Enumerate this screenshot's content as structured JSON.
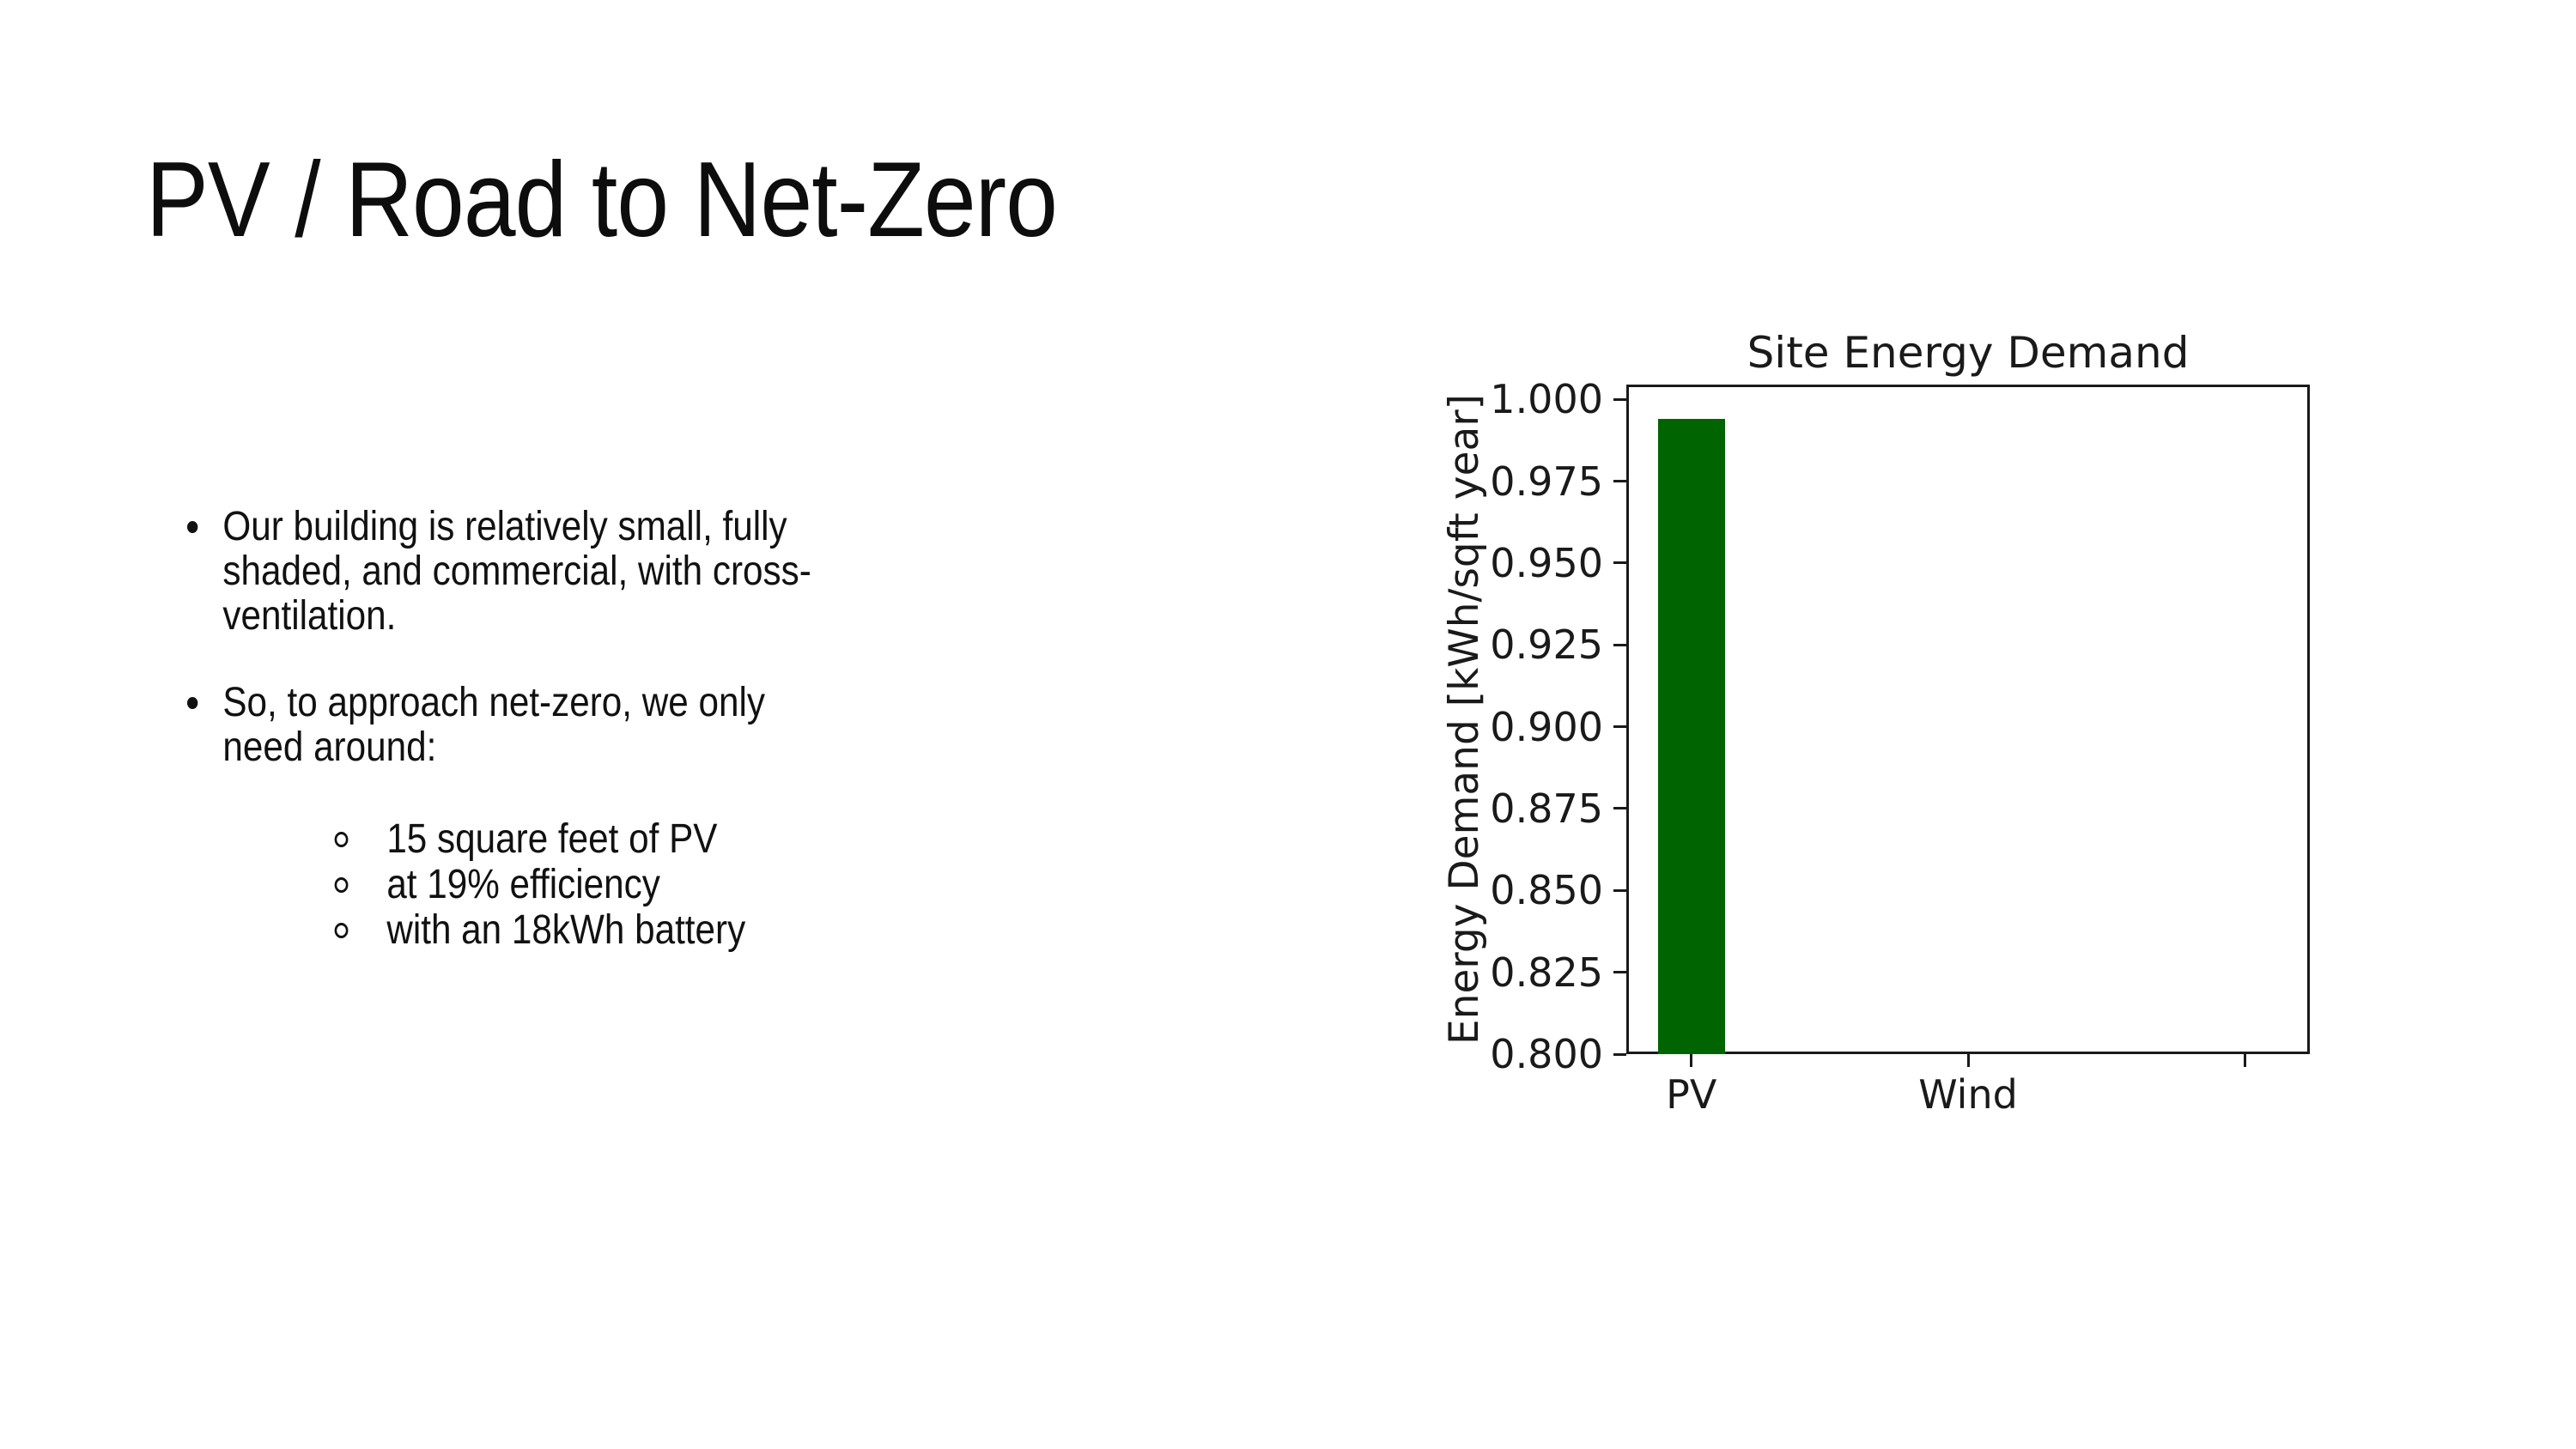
{
  "slide": {
    "title": "PV / Road to Net-Zero",
    "bullets": [
      {
        "level": 1,
        "lines": [
          "Our building is relatively small, fully",
          "shaded, and commercial, with cross-",
          "ventilation."
        ]
      },
      {
        "level": 1,
        "lines": [
          "So, to approach net-zero, we only",
          "need around:"
        ]
      },
      {
        "level": 2,
        "lines": [
          "15 square feet of PV"
        ]
      },
      {
        "level": 2,
        "lines": [
          "at 19% efficiency"
        ]
      },
      {
        "level": 2,
        "lines": [
          "with an 18kWh battery"
        ]
      }
    ]
  },
  "chart_data": {
    "type": "bar",
    "title": "Site Energy Demand",
    "xlabel": "",
    "ylabel": "Energy Demand [kWh/sqft year]",
    "categories": [
      "PV",
      "Wind",
      ""
    ],
    "values": [
      0.994,
      0,
      0
    ],
    "bar_color": "#006400",
    "ylim": [
      0.8,
      1.0045
    ],
    "xlim": [
      -0.235,
      2.235
    ],
    "yticks": [
      1.0,
      0.975,
      0.95,
      0.925,
      0.9,
      0.875,
      0.85,
      0.825,
      0.8
    ],
    "ytick_labels": [
      "1.000",
      "0.975",
      "0.950",
      "0.925",
      "0.900",
      "0.875",
      "0.850",
      "0.825",
      "0.800"
    ],
    "grid": false,
    "legend": null
  },
  "colors": {
    "background": "#ffffff",
    "text": "#111111",
    "axis": "#1a1a1a",
    "bar": "#006400"
  }
}
